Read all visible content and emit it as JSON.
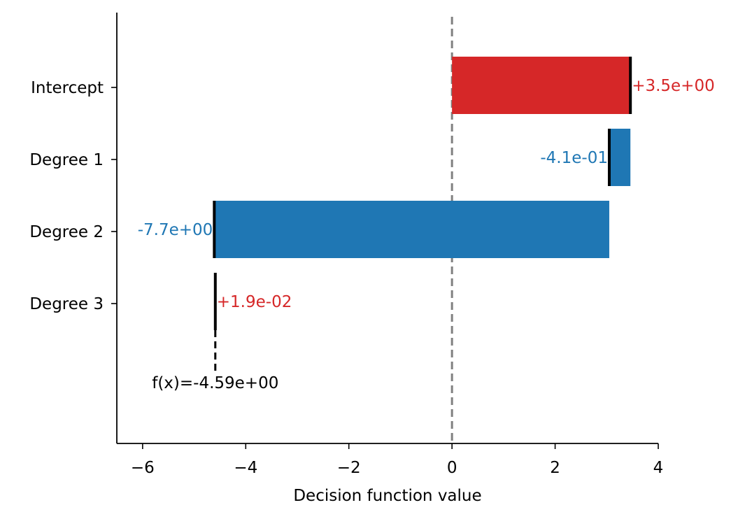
{
  "chart_data": {
    "type": "bar",
    "orientation": "horizontal",
    "subtype": "waterfall",
    "xlabel": "Decision function value",
    "xlim": [
      -6.5,
      4
    ],
    "xticks": [
      -6,
      -4,
      -2,
      0,
      2,
      4
    ],
    "xtick_labels": [
      "−6",
      "−4",
      "−2",
      "0",
      "2",
      "4"
    ],
    "categories": [
      "Intercept",
      "Degree 1",
      "Degree 2",
      "Degree 3"
    ],
    "values": [
      3.5,
      -0.41,
      -7.7,
      0.019
    ],
    "bar_start": [
      0,
      3.46,
      3.05,
      -4.61
    ],
    "bar_end": [
      3.46,
      3.05,
      -4.61,
      -4.59
    ],
    "value_labels": [
      "+3.5e+00",
      "-4.1e-01",
      "-7.7e+00",
      "+1.9e-02"
    ],
    "final_value": -4.59,
    "final_label": "f(x)=-4.59e+00",
    "reference_line_x": 0,
    "grid": false,
    "legend": "none",
    "colors": {
      "positive": "#d62728",
      "negative": "#1f77b4",
      "reference_line": "#808080",
      "edge": "#000000"
    }
  }
}
